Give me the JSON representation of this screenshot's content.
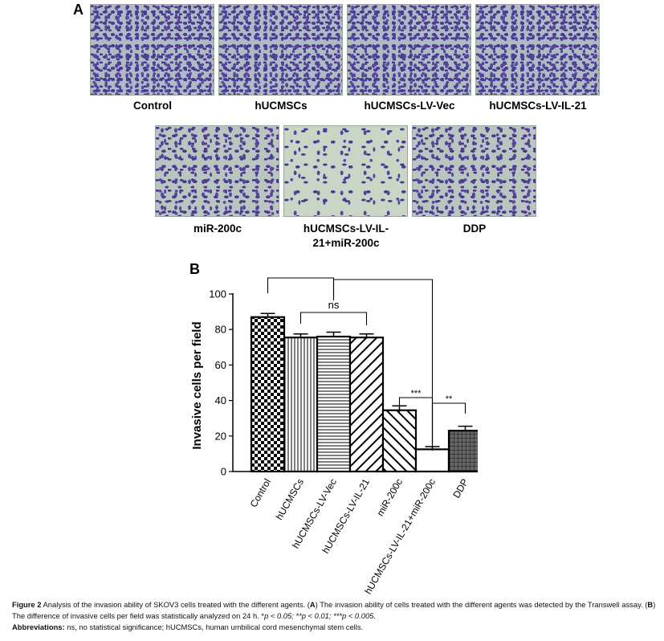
{
  "panel_a": {
    "letter": "A",
    "images": [
      {
        "label": "Control",
        "density": "dense"
      },
      {
        "label": "hUCMSCs",
        "density": "dense"
      },
      {
        "label": "hUCMSCs-LV-Vec",
        "density": "dense"
      },
      {
        "label": "hUCMSCs-LV-IL-21",
        "density": "dense"
      },
      {
        "label": "miR-200c",
        "density": "medium"
      },
      {
        "label_line1": "hUCMSCs-LV-IL-",
        "label_line2": "21+miR-200c",
        "density": "sparse"
      },
      {
        "label": "DDP",
        "density": "medium"
      }
    ]
  },
  "panel_b": {
    "letter": "B",
    "chart_data": {
      "type": "bar",
      "ylabel": "Invasive cells per field",
      "ylim": [
        0,
        100
      ],
      "yticks": [
        0,
        20,
        40,
        60,
        80,
        100
      ],
      "categories": [
        "Control",
        "hUCMSCs",
        "hUCMSCs-LV-Vec",
        "hUCMSCs-LV-IL-21",
        "miR-200c",
        "hUCMSCs-LV-IL-21+miR-200c",
        "DDP"
      ],
      "values": [
        87,
        75.5,
        76,
        75.5,
        34.5,
        12.5,
        23
      ],
      "errors": [
        2,
        2,
        2.5,
        2,
        2.5,
        1.5,
        2.5
      ],
      "patterns": [
        "checker",
        "vertical-lines",
        "horizontal-lines",
        "diagonal-lines",
        "diagonal-lines-back",
        "none",
        "grid"
      ],
      "significance": [
        {
          "from": 0,
          "to": 2,
          "label": "*"
        },
        {
          "from": 2,
          "to": 5,
          "label": "***"
        },
        {
          "from": 1,
          "to": 3,
          "label": "ns"
        },
        {
          "from": 4,
          "to": 5,
          "label": "***"
        },
        {
          "from": 5,
          "to": 6,
          "label": "**"
        }
      ]
    }
  },
  "caption": {
    "figure_label": "Figure 2",
    "text1": " Analysis of the invasion ability of SKOV3 cells treated with the different agents. (",
    "a": "A",
    "text2": ") The invasion ability of cells treated with the different agents was detected by the Transwell assay. (",
    "b": "B",
    "text3": ") The difference of invasive cells per field was statistically analyzed on 24 h. *",
    "p1": "p < 0.05; **",
    "p2": "p < 0.01; ***",
    "p3": "p < 0.005.",
    "abbr_label": "Abbreviations:",
    "abbr_text": " ns, no statistical significance; hUCMSCs, human umbilical cord mesenchymal stem cells."
  }
}
